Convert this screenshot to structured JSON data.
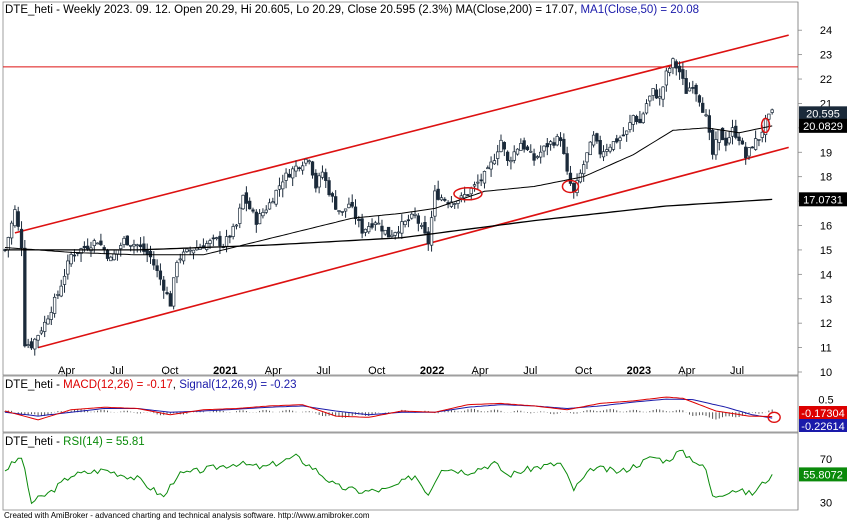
{
  "chart_data": [
    {
      "type": "candlestick",
      "title": "DTE_heti - Weekly 2023. 09. 12. Open 20.29, Hi 20.605, Lo 20.29, Close 20.595 (2.3%)",
      "title_parts": {
        "prefix": "DTE_heti - Weekly 2023. 09. 12. Open 20.29, Hi 20.605, Lo 20.29, Close 20.595 (2.3%) ",
        "ma200_label": "MA(Close,200) = 17.07",
        "ma50_label": "MA1(Close,50) = 20.08"
      },
      "ylim": [
        10,
        24.5
      ],
      "y_ticks": [
        10,
        11,
        12,
        13,
        14,
        15,
        16,
        17,
        18,
        19,
        20,
        21,
        22,
        23,
        24
      ],
      "x_ticks": [
        {
          "label": "Apr",
          "bold": false
        },
        {
          "label": "Jul",
          "bold": false
        },
        {
          "label": "Oct",
          "bold": false
        },
        {
          "label": "2021",
          "bold": true
        },
        {
          "label": "Apr",
          "bold": false
        },
        {
          "label": "Jul",
          "bold": false
        },
        {
          "label": "Oct",
          "bold": false
        },
        {
          "label": "2022",
          "bold": true
        },
        {
          "label": "Apr",
          "bold": false
        },
        {
          "label": "Jul",
          "bold": false
        },
        {
          "label": "Oct",
          "bold": false
        },
        {
          "label": "2023",
          "bold": true
        },
        {
          "label": "Apr",
          "bold": false
        },
        {
          "label": "Jul",
          "bold": false
        }
      ],
      "close_path": [
        [
          0,
          15.0
        ],
        [
          3,
          16.6
        ],
        [
          5,
          15.2
        ],
        [
          6,
          11.2
        ],
        [
          8,
          11.1
        ],
        [
          12,
          12.0
        ],
        [
          16,
          13.2
        ],
        [
          20,
          14.8
        ],
        [
          24,
          15.1
        ],
        [
          28,
          15.4
        ],
        [
          32,
          14.6
        ],
        [
          36,
          15.4
        ],
        [
          40,
          15.2
        ],
        [
          44,
          14.7
        ],
        [
          48,
          13.5
        ],
        [
          50,
          12.8
        ],
        [
          52,
          14.6
        ],
        [
          56,
          15.0
        ],
        [
          60,
          15.2
        ],
        [
          64,
          15.4
        ],
        [
          66,
          15.2
        ],
        [
          70,
          16.0
        ],
        [
          72,
          17.2
        ],
        [
          74,
          16.7
        ],
        [
          76,
          16.2
        ],
        [
          80,
          16.9
        ],
        [
          84,
          17.9
        ],
        [
          88,
          18.4
        ],
        [
          92,
          18.8
        ],
        [
          94,
          17.6
        ],
        [
          96,
          18.2
        ],
        [
          98,
          17.4
        ],
        [
          100,
          16.8
        ],
        [
          102,
          16.5
        ],
        [
          104,
          16.9
        ],
        [
          108,
          15.8
        ],
        [
          112,
          16.2
        ],
        [
          116,
          15.6
        ],
        [
          120,
          16.0
        ],
        [
          124,
          16.4
        ],
        [
          128,
          15.3
        ],
        [
          130,
          17.3
        ],
        [
          134,
          17.0
        ],
        [
          138,
          17.1
        ],
        [
          142,
          17.6
        ],
        [
          146,
          18.2
        ],
        [
          148,
          18.8
        ],
        [
          150,
          19.5
        ],
        [
          152,
          18.6
        ],
        [
          156,
          19.4
        ],
        [
          160,
          18.7
        ],
        [
          164,
          19.3
        ],
        [
          168,
          19.6
        ],
        [
          170,
          18.1
        ],
        [
          172,
          17.3
        ],
        [
          176,
          18.9
        ],
        [
          178,
          19.6
        ],
        [
          180,
          19.0
        ],
        [
          184,
          19.4
        ],
        [
          188,
          19.8
        ],
        [
          190,
          20.5
        ],
        [
          192,
          20.2
        ],
        [
          194,
          21.0
        ],
        [
          196,
          21.5
        ],
        [
          198,
          21.2
        ],
        [
          200,
          22.2
        ],
        [
          202,
          22.7
        ],
        [
          204,
          22.3
        ],
        [
          206,
          21.5
        ],
        [
          208,
          21.8
        ],
        [
          210,
          21.2
        ],
        [
          212,
          20.4
        ],
        [
          214,
          18.9
        ],
        [
          216,
          19.8
        ],
        [
          218,
          19.4
        ],
        [
          220,
          19.9
        ],
        [
          222,
          19.6
        ],
        [
          224,
          18.8
        ],
        [
          226,
          19.3
        ],
        [
          228,
          19.6
        ],
        [
          230,
          20.2
        ],
        [
          232,
          20.595
        ]
      ],
      "ma200": [
        [
          0,
          15.0
        ],
        [
          40,
          15.0
        ],
        [
          80,
          15.2
        ],
        [
          120,
          15.5
        ],
        [
          160,
          16.2
        ],
        [
          200,
          16.8
        ],
        [
          232,
          17.07
        ]
      ],
      "ma50": [
        [
          0,
          15.1
        ],
        [
          20,
          14.9
        ],
        [
          40,
          14.8
        ],
        [
          60,
          14.8
        ],
        [
          75,
          15.3
        ],
        [
          90,
          15.8
        ],
        [
          105,
          16.3
        ],
        [
          120,
          16.5
        ],
        [
          130,
          16.7
        ],
        [
          145,
          17.4
        ],
        [
          160,
          17.6
        ],
        [
          175,
          18.0
        ],
        [
          190,
          18.9
        ],
        [
          202,
          19.9
        ],
        [
          212,
          20.0
        ],
        [
          222,
          19.8
        ],
        [
          232,
          20.08
        ]
      ],
      "channel_upper": [
        [
          3,
          15.7
        ],
        [
          237,
          23.8
        ]
      ],
      "channel_lower": [
        [
          10,
          11.0
        ],
        [
          237,
          19.2
        ]
      ],
      "horizontal_line": 22.5,
      "highlights": [
        {
          "x": 140,
          "y": 17.3,
          "rx": 14,
          "ry": 6
        },
        {
          "x": 171,
          "y": 17.6,
          "rx": 8,
          "ry": 6
        },
        {
          "x": 230,
          "y": 20.1,
          "rx": 4,
          "ry": 7
        }
      ],
      "value_badges": [
        {
          "text": "20.595",
          "value": 20.595,
          "bg": "#1b2a3a",
          "fg": "#ffffff"
        },
        {
          "text": "20.0829",
          "value": 20.0829,
          "bg": "#000000",
          "fg": "#ffffff"
        },
        {
          "text": "17.0731",
          "value": 17.0731,
          "bg": "#000000",
          "fg": "#ffffff"
        }
      ]
    },
    {
      "type": "line",
      "title_parts": {
        "prefix": "DTE_heti - ",
        "macd_label": "MACD(12,26) = -0.17",
        "sep": ", ",
        "signal_label": "Signal(12,26,9) = -0.23"
      },
      "ylim": [
        -0.7,
        0.8
      ],
      "y_ticks": [
        0.5
      ],
      "macd": [
        [
          0,
          0.05
        ],
        [
          10,
          -0.3
        ],
        [
          20,
          0.1
        ],
        [
          30,
          0.2
        ],
        [
          40,
          0.15
        ],
        [
          50,
          -0.1
        ],
        [
          60,
          0.1
        ],
        [
          70,
          0.15
        ],
        [
          80,
          0.25
        ],
        [
          90,
          0.3
        ],
        [
          100,
          -0.15
        ],
        [
          110,
          -0.2
        ],
        [
          120,
          0.05
        ],
        [
          130,
          0.0
        ],
        [
          140,
          0.3
        ],
        [
          150,
          0.35
        ],
        [
          160,
          0.25
        ],
        [
          170,
          0.1
        ],
        [
          180,
          0.35
        ],
        [
          190,
          0.45
        ],
        [
          200,
          0.6
        ],
        [
          205,
          0.55
        ],
        [
          215,
          0.05
        ],
        [
          225,
          -0.15
        ],
        [
          232,
          -0.17
        ]
      ],
      "signal": [
        [
          0,
          0.0
        ],
        [
          10,
          -0.15
        ],
        [
          20,
          0.0
        ],
        [
          30,
          0.15
        ],
        [
          40,
          0.15
        ],
        [
          50,
          0.0
        ],
        [
          60,
          0.05
        ],
        [
          70,
          0.12
        ],
        [
          80,
          0.2
        ],
        [
          90,
          0.25
        ],
        [
          100,
          0.05
        ],
        [
          110,
          -0.1
        ],
        [
          120,
          0.0
        ],
        [
          130,
          0.0
        ],
        [
          140,
          0.2
        ],
        [
          150,
          0.3
        ],
        [
          160,
          0.25
        ],
        [
          170,
          0.15
        ],
        [
          180,
          0.25
        ],
        [
          190,
          0.4
        ],
        [
          200,
          0.52
        ],
        [
          208,
          0.5
        ],
        [
          218,
          0.2
        ],
        [
          226,
          -0.1
        ],
        [
          232,
          -0.23
        ]
      ],
      "hist_amplitude": 0.12,
      "value_badges": [
        {
          "text": "-0.17304",
          "value": -0.17304,
          "bg": "#dd0000",
          "fg": "#ffffff"
        },
        {
          "text": "-0.22614",
          "value": -0.22614,
          "bg": "#1a1aaa",
          "fg": "#ffffff"
        }
      ]
    },
    {
      "type": "line",
      "title_parts": {
        "prefix": "DTE_heti - ",
        "rsi_label": "RSI(14) = 55.81"
      },
      "ylim": [
        25,
        80
      ],
      "y_ticks": [
        30,
        70
      ],
      "rsi": [
        [
          0,
          60
        ],
        [
          5,
          72
        ],
        [
          8,
          30
        ],
        [
          14,
          40
        ],
        [
          20,
          55
        ],
        [
          30,
          60
        ],
        [
          40,
          52
        ],
        [
          48,
          35
        ],
        [
          52,
          55
        ],
        [
          60,
          60
        ],
        [
          70,
          66
        ],
        [
          78,
          62
        ],
        [
          88,
          72
        ],
        [
          94,
          60
        ],
        [
          100,
          45
        ],
        [
          108,
          40
        ],
        [
          116,
          42
        ],
        [
          124,
          55
        ],
        [
          128,
          38
        ],
        [
          132,
          62
        ],
        [
          140,
          58
        ],
        [
          148,
          66
        ],
        [
          152,
          55
        ],
        [
          160,
          62
        ],
        [
          168,
          66
        ],
        [
          172,
          42
        ],
        [
          178,
          62
        ],
        [
          186,
          58
        ],
        [
          192,
          66
        ],
        [
          196,
          72
        ],
        [
          200,
          68
        ],
        [
          204,
          77
        ],
        [
          208,
          70
        ],
        [
          212,
          60
        ],
        [
          214,
          35
        ],
        [
          220,
          42
        ],
        [
          226,
          38
        ],
        [
          232,
          55.81
        ]
      ],
      "value_badges": [
        {
          "text": "55.8072",
          "value": 55.8072,
          "bg": "#0a8a0a",
          "fg": "#ffffff"
        }
      ]
    }
  ],
  "footer": "Created with AmiBroker - advanced charting and technical analysis software. http://www.amibroker.com",
  "colors": {
    "candle": "#1b2a3a",
    "ma": "#000000",
    "channel": "#dd1111",
    "macd": "#dd0000",
    "signal": "#1a1aaa",
    "rsi": "#0a8a0a",
    "hist": "#444444"
  }
}
